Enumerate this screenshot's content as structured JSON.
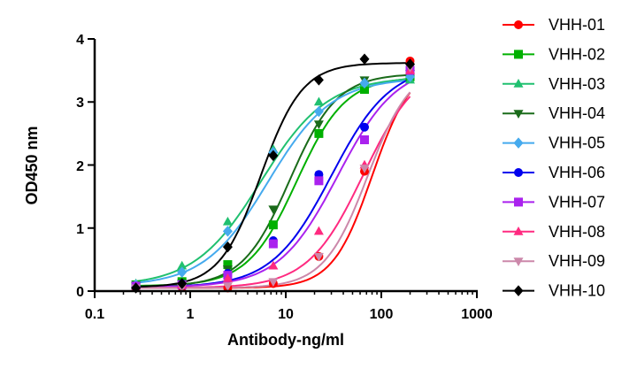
{
  "chart_data": {
    "type": "scatter",
    "title": "",
    "xlabel": "Antibody-ng/ml",
    "ylabel": "OD450 nm",
    "xscale": "log",
    "xlim": [
      0.1,
      1000
    ],
    "ylim": [
      0,
      4
    ],
    "x_ticks": [
      0.1,
      1,
      10,
      100,
      1000
    ],
    "x_tick_labels": [
      "0.1",
      "1",
      "10",
      "100",
      "1000"
    ],
    "y_ticks": [
      0,
      1,
      2,
      3,
      4
    ],
    "y_tick_labels": [
      "0",
      "1",
      "2",
      "3",
      "4"
    ],
    "legend_position": "right",
    "x": [
      0.27,
      0.82,
      2.47,
      7.4,
      22.2,
      66.7,
      200
    ],
    "series": [
      {
        "name": "VHH-01",
        "color": "#ff0000",
        "marker": "circle",
        "values": [
          0.05,
          0.06,
          0.05,
          0.12,
          0.55,
          1.9,
          3.65
        ],
        "fit": {
          "bottom": 0.05,
          "top": 3.6,
          "ec50": 80,
          "hill": 2.1
        }
      },
      {
        "name": "VHH-02",
        "color": "#00b000",
        "marker": "square",
        "values": [
          0.1,
          0.15,
          0.42,
          1.05,
          2.5,
          3.2,
          3.4
        ],
        "fit": {
          "bottom": 0.08,
          "top": 3.4,
          "ec50": 13,
          "hill": 1.7
        }
      },
      {
        "name": "VHH-03",
        "color": "#20c070",
        "marker": "triangle-up",
        "values": [
          0.12,
          0.4,
          1.1,
          2.25,
          3.0,
          3.3,
          3.35
        ],
        "fit": {
          "bottom": 0.08,
          "top": 3.4,
          "ec50": 5.5,
          "hill": 1.25
        }
      },
      {
        "name": "VHH-04",
        "color": "#1a6b1a",
        "marker": "triangle-down",
        "values": [
          0.08,
          0.12,
          0.35,
          1.3,
          2.65,
          3.35,
          3.45
        ],
        "fit": {
          "bottom": 0.07,
          "top": 3.45,
          "ec50": 11,
          "hill": 1.75
        }
      },
      {
        "name": "VHH-05",
        "color": "#45aaee",
        "marker": "diamond",
        "values": [
          0.1,
          0.3,
          0.95,
          2.2,
          2.85,
          3.3,
          3.4
        ],
        "fit": {
          "bottom": 0.08,
          "top": 3.38,
          "ec50": 6.5,
          "hill": 1.3
        }
      },
      {
        "name": "VHH-06",
        "color": "#0000ee",
        "marker": "circle",
        "values": [
          0.08,
          0.12,
          0.28,
          0.8,
          1.85,
          2.6,
          3.55
        ],
        "fit": {
          "bottom": 0.06,
          "top": 3.6,
          "ec50": 30,
          "hill": 1.4
        }
      },
      {
        "name": "VHH-07",
        "color": "#aa22ee",
        "marker": "square",
        "values": [
          0.08,
          0.1,
          0.25,
          0.75,
          1.75,
          2.4,
          3.5
        ],
        "fit": {
          "bottom": 0.06,
          "top": 3.6,
          "ec50": 35,
          "hill": 1.4
        }
      },
      {
        "name": "VHH-08",
        "color": "#ff2a80",
        "marker": "triangle-up",
        "values": [
          0.06,
          0.1,
          0.2,
          0.4,
          0.95,
          2.0,
          3.5
        ],
        "fit": {
          "bottom": 0.05,
          "top": 3.65,
          "ec50": 65,
          "hill": 1.5
        }
      },
      {
        "name": "VHH-09",
        "color": "#cc88aa",
        "marker": "triangle-down",
        "values": [
          0.05,
          0.06,
          0.08,
          0.15,
          0.55,
          1.95,
          3.55
        ],
        "fit": {
          "bottom": 0.05,
          "top": 3.6,
          "ec50": 72,
          "hill": 1.9
        }
      },
      {
        "name": "VHH-10",
        "color": "#000000",
        "marker": "diamond",
        "values": [
          0.05,
          0.12,
          0.7,
          2.15,
          3.35,
          3.68,
          3.6
        ],
        "fit": {
          "bottom": 0.06,
          "top": 3.62,
          "ec50": 5.5,
          "hill": 2.0
        }
      }
    ]
  }
}
